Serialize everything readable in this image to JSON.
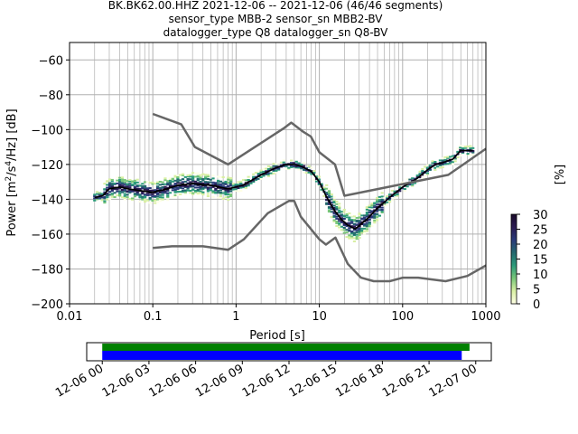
{
  "title": {
    "line1": "BK.BK62.00.HHZ   2021-12-06 -- 2021-12-06  (46/46 segments)",
    "line2": "sensor_type MBB-2 sensor_sn MBB2-BV",
    "line3": "datalogger_type Q8 datalogger_sn Q8-BV"
  },
  "colors": {
    "black": "#000000",
    "noise_model": "#666666",
    "grid": "#b0b0b0",
    "coverage_data": "#008000",
    "coverage_gaps": "#0000ff",
    "colormap": [
      "#ffffe5",
      "#d9f0a3",
      "#78c679",
      "#2b9a7a",
      "#24686e",
      "#2a3a7a",
      "#2b1b52",
      "#1a0a2a"
    ]
  },
  "chart_data": [
    {
      "type": "heatmap",
      "description_type": "probabilistic power spectral density",
      "xlabel": "Period [s]",
      "ylabel": "Power [m2/s4/Hz] [dB]",
      "xscale": "log",
      "xlim": [
        0.01,
        1000
      ],
      "ylim": [
        -200,
        -50
      ],
      "xticks": [
        0.01,
        0.1,
        1,
        10,
        100,
        1000
      ],
      "xtick_labels": [
        "0.01",
        "0.1",
        "1",
        "10",
        "100",
        "1000"
      ],
      "yticks": [
        -200,
        -180,
        -160,
        -140,
        -120,
        -100,
        -80,
        -60
      ],
      "ytick_labels": [
        "−200",
        "−180",
        "−160",
        "−140",
        "−120",
        "−100",
        "−80",
        "−60"
      ],
      "grid": true,
      "colorbar": {
        "label": "[%]",
        "range": [
          0,
          30
        ],
        "ticks": [
          0,
          5,
          10,
          15,
          20,
          25,
          30
        ],
        "tick_labels": [
          "0",
          "5",
          "10",
          "15",
          "20",
          "25",
          "30"
        ]
      },
      "series": [
        {
          "role": "mean",
          "x": [
            0.02,
            0.025,
            0.03,
            0.04,
            0.05,
            0.07,
            0.1,
            0.15,
            0.2,
            0.3,
            0.5,
            0.8,
            1.2,
            2,
            3,
            4,
            5,
            6,
            8,
            10,
            12,
            15,
            18,
            22,
            27,
            32,
            40,
            50,
            70,
            100,
            150,
            200,
            250,
            300,
            400,
            500,
            600,
            700
          ],
          "y": [
            -139,
            -138,
            -134,
            -133,
            -134,
            -135,
            -136,
            -134,
            -132,
            -131,
            -132,
            -134,
            -132,
            -126,
            -122,
            -120,
            -120,
            -121,
            -124,
            -130,
            -138,
            -146,
            -151,
            -155,
            -157,
            -154,
            -150,
            -145,
            -139,
            -133,
            -128,
            -123,
            -120,
            -119,
            -117,
            -112,
            -112,
            -112
          ]
        },
        {
          "role": "noise_model_high",
          "x": [
            0.1,
            0.22,
            0.32,
            0.8,
            3.8,
            4.6,
            6.3,
            7.9,
            10,
            15.4,
            20,
            354,
            1000
          ],
          "y": [
            -91,
            -97,
            -110,
            -120,
            -99,
            -96,
            -101,
            -104,
            -113,
            -120,
            -138,
            -126,
            -111
          ]
        },
        {
          "role": "noise_model_low",
          "x": [
            0.1,
            0.17,
            0.4,
            0.8,
            1.24,
            2.4,
            4.3,
            5,
            6,
            10,
            12,
            15.6,
            21.9,
            31.6,
            45,
            70,
            101,
            154,
            328,
            600,
            1000
          ],
          "y": [
            -168,
            -167,
            -167,
            -169,
            -163,
            -148,
            -141,
            -141,
            -150,
            -163,
            -166,
            -162,
            -177,
            -185,
            -187,
            -187,
            -185,
            -185,
            -187,
            -184,
            -178
          ]
        }
      ]
    },
    {
      "type": "bar",
      "description_type": "data coverage timeline",
      "xtick_labels": [
        "12-06 00",
        "12-06 03",
        "12-06 06",
        "12-06 09",
        "12-06 12",
        "12-06 15",
        "12-06 18",
        "12-06 21",
        "12-07 00"
      ],
      "xlim_hours": [
        -1,
        25
      ],
      "series": [
        {
          "role": "data",
          "start_hour": 0,
          "end_hour": 23.6
        },
        {
          "role": "gaps",
          "start_hour": 0,
          "end_hour": 23.1
        }
      ]
    }
  ]
}
